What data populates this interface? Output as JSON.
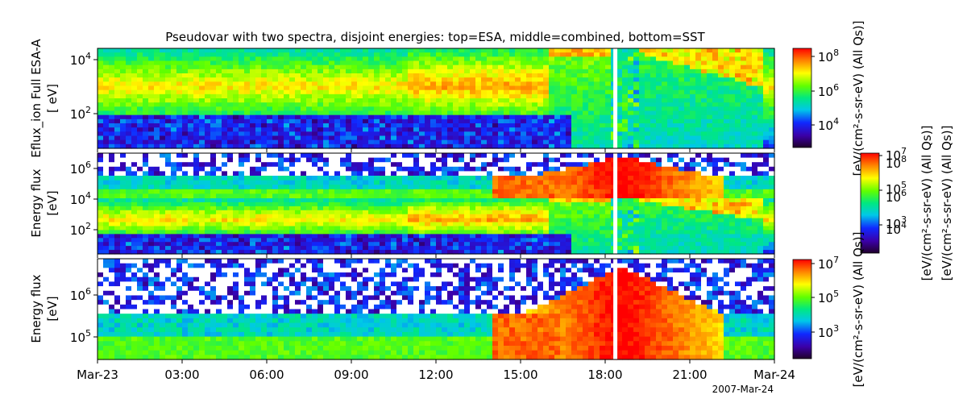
{
  "chart_data": {
    "type": "heatmap",
    "title": "Pseudovar with two spectra, disjoint energies: top=ESA, middle=combined, bottom=SST",
    "date_label": "2007-Mar-24",
    "x_ticks": [
      "Mar-23",
      "03:00",
      "06:00",
      "09:00",
      "12:00",
      "15:00",
      "18:00",
      "21:00",
      "Mar-24"
    ],
    "panels": [
      {
        "name": "top",
        "ylabel_lines": [
          "Eflux_ion Full ESA-A",
          "[ eV]"
        ],
        "y_ticks": [
          {
            "base": "10",
            "exp": "4"
          },
          {
            "base": "10",
            "exp": "2"
          }
        ],
        "cbar_label": "[eV/(cm²-s-sr-eV) (All Qs)]",
        "cbar_ticks": [
          {
            "base": "10",
            "exp": "8"
          },
          {
            "base": "10",
            "exp": "6"
          },
          {
            "base": "10",
            "exp": "4"
          }
        ]
      },
      {
        "name": "middle",
        "ylabel_lines": [
          "Energy flux",
          "[eV]"
        ],
        "y_ticks": [
          {
            "base": "10",
            "exp": "6"
          },
          {
            "base": "10",
            "exp": "4"
          },
          {
            "base": "10",
            "exp": "2"
          }
        ],
        "cbar_label_a": "[eV/(cm²-s-sr-eV) (All Qs)]",
        "cbar_label_b": "[eV/(cm²-s-sr-eV) (All Qs)]",
        "cbar_ticks_a": [
          {
            "base": "10",
            "exp": "7"
          },
          {
            "base": "10",
            "exp": "5"
          },
          {
            "base": "10",
            "exp": "3"
          }
        ],
        "cbar_ticks_b": [
          {
            "base": "10",
            "exp": "8"
          },
          {
            "base": "10",
            "exp": "6"
          },
          {
            "base": "10",
            "exp": "4"
          }
        ]
      },
      {
        "name": "bottom",
        "ylabel_lines": [
          "Energy flux",
          "[eV]"
        ],
        "y_ticks": [
          {
            "base": "10",
            "exp": "6"
          },
          {
            "base": "10",
            "exp": "5"
          }
        ],
        "cbar_label": "[eV/(cm²-s-sr-eV) (All Qs)]",
        "cbar_ticks": [
          {
            "base": "10",
            "exp": "7"
          },
          {
            "base": "10",
            "exp": "5"
          },
          {
            "base": "10",
            "exp": "3"
          }
        ]
      }
    ]
  }
}
